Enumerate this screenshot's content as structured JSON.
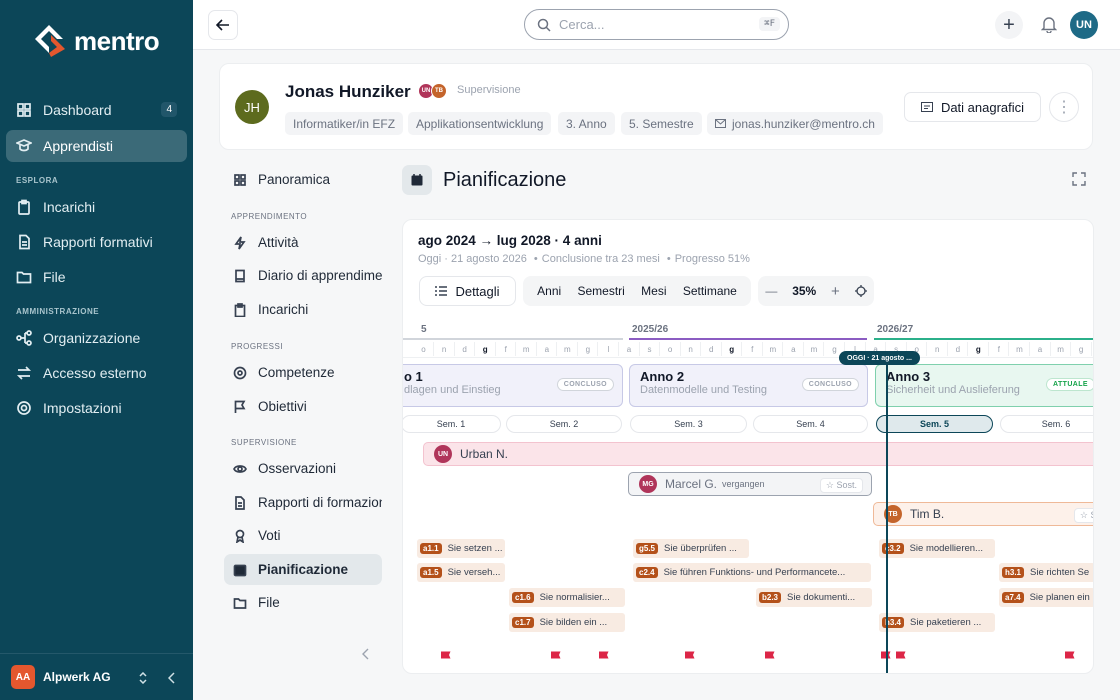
{
  "brand": {
    "name": "mentro",
    "accent": "#e4572e",
    "sidebar_bg": "#0c4658"
  },
  "sidebar": {
    "main": [
      {
        "label": "Dashboard",
        "icon": "dashboard-icon",
        "badge": "4"
      },
      {
        "label": "Apprendisti",
        "icon": "apprentice-icon",
        "active": true
      }
    ],
    "sections": [
      {
        "title": "ESPLORA",
        "items": [
          {
            "label": "Incarichi",
            "icon": "clipboard-icon"
          },
          {
            "label": "Rapporti formativi",
            "icon": "report-icon"
          },
          {
            "label": "File",
            "icon": "folder-icon"
          }
        ]
      },
      {
        "title": "AMMINISTRAZIONE",
        "items": [
          {
            "label": "Organizzazione",
            "icon": "org-icon"
          },
          {
            "label": "Accesso esterno",
            "icon": "swap-icon"
          },
          {
            "label": "Impostazioni",
            "icon": "gear-icon"
          }
        ]
      }
    ],
    "org": {
      "initials": "AA",
      "name": "Alpwerk AG"
    }
  },
  "topbar": {
    "search_placeholder": "Cerca...",
    "shortcut": "⌘F",
    "user_initials": "UN"
  },
  "profile": {
    "initials": "JH",
    "name": "Jonas Hunziker",
    "supervisors": [
      {
        "initials": "UN",
        "color": "#b0355a"
      },
      {
        "initials": "TB",
        "color": "#c4642b"
      }
    ],
    "supervision_label": "Supervisione",
    "chips": [
      "Informatiker/in EFZ",
      "Applikationsentwicklung",
      "3. Anno",
      "5. Semestre",
      "jonas.hunziker@mentro.ch"
    ],
    "dati_button": "Dati anagrafici"
  },
  "subnav": {
    "top": {
      "label": "Panoramica",
      "icon": "grid-icon"
    },
    "sections": [
      {
        "title": "APPRENDIMENTO",
        "items": [
          {
            "label": "Attività",
            "icon": "bolt-icon"
          },
          {
            "label": "Diario di apprendimento",
            "icon": "book-icon"
          },
          {
            "label": "Incarichi",
            "icon": "clipboard-icon"
          }
        ]
      },
      {
        "title": "PROGRESSI",
        "items": [
          {
            "label": "Competenze",
            "icon": "target-icon"
          },
          {
            "label": "Obiettivi",
            "icon": "flag-icon"
          }
        ]
      },
      {
        "title": "SUPERVISIONE",
        "items": [
          {
            "label": "Osservazioni",
            "icon": "eye-icon"
          },
          {
            "label": "Rapporti di formazione",
            "icon": "doc-icon"
          },
          {
            "label": "Voti",
            "icon": "medal-icon"
          },
          {
            "label": "Pianificazione",
            "icon": "calendar-icon",
            "active": true
          },
          {
            "label": "File",
            "icon": "folder-icon"
          }
        ]
      }
    ]
  },
  "page": {
    "title": "Pianificazione"
  },
  "plan": {
    "range": "ago 2024 → lug 2028 · 4 anni",
    "today": "Oggi · 21 agosto 2026",
    "conclusion": "Conclusione tra 23 mesi",
    "progress": "Progresso 51%",
    "details_button": "Dettagli",
    "scales": [
      "Anni",
      "Semestri",
      "Mesi",
      "Settimane"
    ],
    "zoom": "35%",
    "years": [
      {
        "label": "5",
        "color": "#9ca3af"
      },
      {
        "label": "2025/26",
        "color": "#8b5cc2"
      },
      {
        "label": "2026/27",
        "color": "#2bb08a"
      }
    ],
    "months": [
      "o",
      "n",
      "d",
      "g",
      "f",
      "m",
      "a",
      "m",
      "g",
      "l",
      "a",
      "s",
      "o",
      "n",
      "d",
      "g",
      "f",
      "m",
      "a",
      "m",
      "g",
      "l",
      "a",
      "s",
      "o",
      "n",
      "d",
      "g",
      "f",
      "m",
      "a",
      "m",
      "g",
      "l"
    ],
    "today_badge": "OGGI · 21 agosto ...",
    "years_blocks": [
      {
        "title": "o 1",
        "subtitle": "dlagen und Einstieg",
        "status": "CONCLUSO"
      },
      {
        "title": "Anno 2",
        "subtitle": "Datenmodelle und Testing",
        "status": "CONCLUSO"
      },
      {
        "title": "Anno 3",
        "subtitle": "Sicherheit und Auslieferung",
        "status": "ATTUALE"
      }
    ],
    "semesters": [
      "Sem. 1",
      "Sem. 2",
      "Sem. 3",
      "Sem. 4",
      "Sem. 5",
      "Sem. 6"
    ],
    "people": [
      {
        "initials": "UN",
        "name": "Urban N.",
        "color": "#b0355a"
      },
      {
        "initials": "MG",
        "name": "Marcel G.",
        "note": "vergangen",
        "color": "#b0355a",
        "tag": "☆ Sost."
      },
      {
        "initials": "TB",
        "name": "Tim B.",
        "color": "#c4642b",
        "tag": "☆ Sos"
      }
    ],
    "tasks": [
      {
        "id": "a1.1",
        "text": "Sie setzen ..."
      },
      {
        "id": "a1.5",
        "text": "Sie verseh..."
      },
      {
        "id": "c1.6",
        "text": "Sie normalisier..."
      },
      {
        "id": "c1.7",
        "text": "Sie bilden ein ..."
      },
      {
        "id": "g5.5",
        "text": "Sie überprüfen ..."
      },
      {
        "id": "c2.4",
        "text": "Sie führen Funktions- und Performancete..."
      },
      {
        "id": "b2.3",
        "text": "Sie dokumenti..."
      },
      {
        "id": "c3.2",
        "text": "Sie modellieren..."
      },
      {
        "id": "h3.4",
        "text": "Sie paketieren ..."
      },
      {
        "id": "h3.1",
        "text": "Sie richten Se"
      },
      {
        "id": "a7.4",
        "text": "Sie planen ein"
      }
    ]
  }
}
